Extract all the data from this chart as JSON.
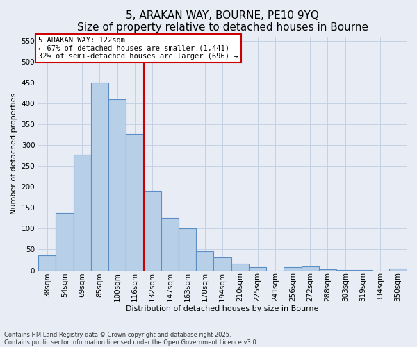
{
  "title1": "5, ARAKAN WAY, BOURNE, PE10 9YQ",
  "title2": "Size of property relative to detached houses in Bourne",
  "xlabel": "Distribution of detached houses by size in Bourne",
  "ylabel": "Number of detached properties",
  "bar_labels": [
    "38sqm",
    "54sqm",
    "69sqm",
    "85sqm",
    "100sqm",
    "116sqm",
    "132sqm",
    "147sqm",
    "163sqm",
    "178sqm",
    "194sqm",
    "210sqm",
    "225sqm",
    "241sqm",
    "256sqm",
    "272sqm",
    "288sqm",
    "303sqm",
    "319sqm",
    "334sqm",
    "350sqm"
  ],
  "bar_values": [
    35,
    137,
    277,
    450,
    410,
    327,
    190,
    125,
    101,
    46,
    31,
    16,
    7,
    0,
    8,
    9,
    3,
    1,
    1,
    0,
    4
  ],
  "bar_color": "#b8cfe8",
  "bar_edge_color": "#5b8ec4",
  "vline_x": 6.0,
  "vline_color": "#cc0000",
  "annotation_title": "5 ARAKAN WAY: 122sqm",
  "annotation_line1": "← 67% of detached houses are smaller (1,441)",
  "annotation_line2": "32% of semi-detached houses are larger (696) →",
  "annotation_box_color": "#cc0000",
  "ylim": [
    0,
    560
  ],
  "yticks": [
    0,
    50,
    100,
    150,
    200,
    250,
    300,
    350,
    400,
    450,
    500,
    550
  ],
  "grid_color": "#c0cce0",
  "footnote1": "Contains HM Land Registry data © Crown copyright and database right 2025.",
  "footnote2": "Contains public sector information licensed under the Open Government Licence v3.0.",
  "bg_color": "#e8edf5",
  "title_fontsize": 11,
  "axis_label_fontsize": 8,
  "tick_fontsize": 7.5
}
